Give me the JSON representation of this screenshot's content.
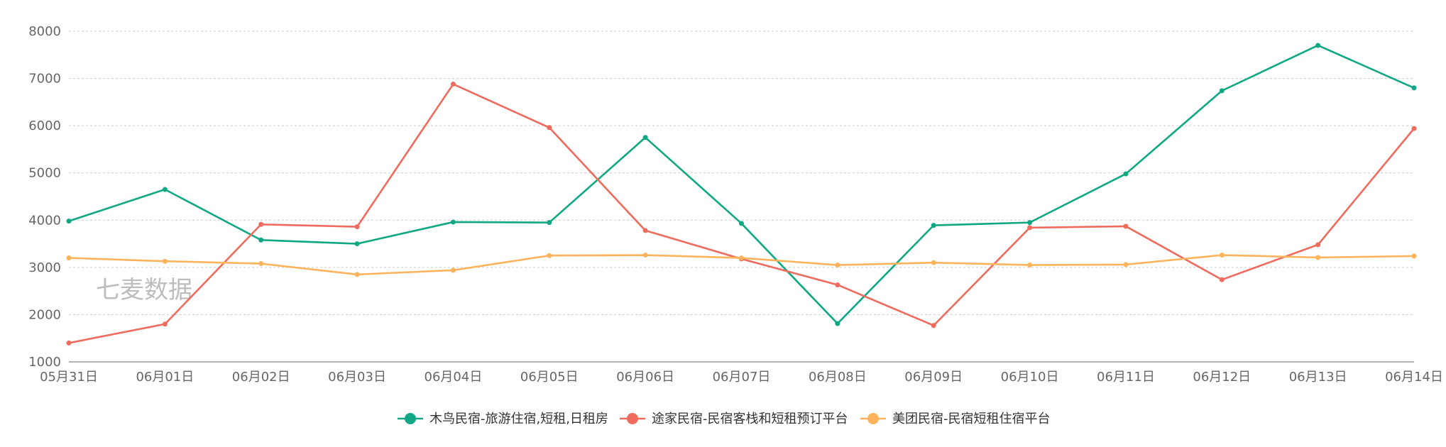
{
  "watermark": "七麦数据",
  "chart_data": {
    "type": "line",
    "categories": [
      "05月31日",
      "06月01日",
      "06月02日",
      "06月03日",
      "06月04日",
      "06月05日",
      "06月06日",
      "06月07日",
      "06月08日",
      "06月09日",
      "06月10日",
      "06月11日",
      "06月12日",
      "06月13日",
      "06月14日"
    ],
    "ylim": [
      1000,
      8000
    ],
    "yticks": [
      1000,
      2000,
      3000,
      4000,
      5000,
      6000,
      7000,
      8000
    ],
    "grid": true,
    "legend_position": "bottom",
    "series": [
      {
        "name": "木鸟民宿-旅游住宿,短租,日租房",
        "color": "#10a884",
        "values": [
          3980,
          4650,
          3580,
          3500,
          3960,
          3950,
          5750,
          3930,
          1810,
          3890,
          3950,
          4980,
          6740,
          7700,
          6800
        ]
      },
      {
        "name": "途家民宿-民宿客栈和短租预订平台",
        "color": "#ef6b5e",
        "values": [
          1400,
          1800,
          3910,
          3860,
          6880,
          5960,
          3780,
          3180,
          2630,
          1770,
          3840,
          3870,
          2740,
          3480,
          5940
        ]
      },
      {
        "name": "美团民宿-民宿短租住宿平台",
        "color": "#fdb35c",
        "values": [
          3200,
          3130,
          3080,
          2850,
          2940,
          3250,
          3260,
          3200,
          3050,
          3100,
          3050,
          3060,
          3260,
          3210,
          3240
        ]
      }
    ]
  }
}
